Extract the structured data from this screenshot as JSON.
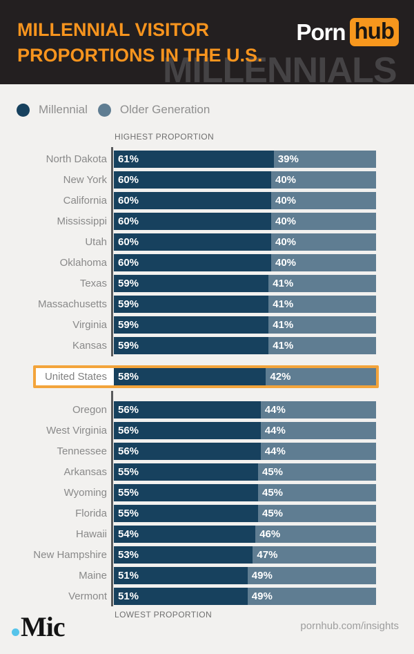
{
  "page": {
    "background": "#f2f1ef"
  },
  "header": {
    "title_line1": "MILLENNIAL VISITOR",
    "title_line2": "PROPORTIONS IN THE U.S.",
    "watermark": "MILLENNIALS",
    "brand": {
      "word1": "Porn",
      "word2": "hub"
    },
    "colors": {
      "bg": "#231f20",
      "title": "#f7941e",
      "brand_box": "#f7971d",
      "watermark": "#454345"
    }
  },
  "legend": {
    "items": [
      {
        "label": "Millennial",
        "color": "#17415e"
      },
      {
        "label": "Older Generation",
        "color": "#5f7d92"
      }
    ]
  },
  "chart_data": {
    "type": "bar",
    "variant": "horizontal-stacked-100pct",
    "title": "Millennial Visitor Proportions in the U.S.",
    "xlim": [
      0,
      100
    ],
    "top_axis_label": "HIGHEST PROPORTION",
    "bottom_axis_label": "LOWEST PROPORTION",
    "highlight_color": "#f3a43b",
    "series": [
      {
        "name": "Millennial",
        "color": "#17415e"
      },
      {
        "name": "Older Generation",
        "color": "#5f7d92"
      }
    ],
    "sections": [
      {
        "name": "highest",
        "rows": [
          {
            "label": "North Dakota",
            "millennial": 61,
            "older": 39
          },
          {
            "label": "New York",
            "millennial": 60,
            "older": 40
          },
          {
            "label": "California",
            "millennial": 60,
            "older": 40
          },
          {
            "label": "Mississippi",
            "millennial": 60,
            "older": 40
          },
          {
            "label": "Utah",
            "millennial": 60,
            "older": 40
          },
          {
            "label": "Oklahoma",
            "millennial": 60,
            "older": 40
          },
          {
            "label": "Texas",
            "millennial": 59,
            "older": 41
          },
          {
            "label": "Massachusetts",
            "millennial": 59,
            "older": 41
          },
          {
            "label": "Virginia",
            "millennial": 59,
            "older": 41
          },
          {
            "label": "Kansas",
            "millennial": 59,
            "older": 41
          }
        ]
      },
      {
        "name": "united-states",
        "highlighted": true,
        "rows": [
          {
            "label": "United States",
            "millennial": 58,
            "older": 42
          }
        ]
      },
      {
        "name": "lowest",
        "rows": [
          {
            "label": "Oregon",
            "millennial": 56,
            "older": 44
          },
          {
            "label": "West Virginia",
            "millennial": 56,
            "older": 44
          },
          {
            "label": "Tennessee",
            "millennial": 56,
            "older": 44
          },
          {
            "label": "Arkansas",
            "millennial": 55,
            "older": 45
          },
          {
            "label": "Wyoming",
            "millennial": 55,
            "older": 45
          },
          {
            "label": "Florida",
            "millennial": 55,
            "older": 45
          },
          {
            "label": "Hawaii",
            "millennial": 54,
            "older": 46
          },
          {
            "label": "New Hampshire",
            "millennial": 53,
            "older": 47
          },
          {
            "label": "Maine",
            "millennial": 51,
            "older": 49
          },
          {
            "label": "Vermont",
            "millennial": 51,
            "older": 49
          }
        ]
      }
    ]
  },
  "footer": {
    "mic_dot": ".",
    "mic_name": "Mic",
    "source": "pornhub.com/insights"
  }
}
